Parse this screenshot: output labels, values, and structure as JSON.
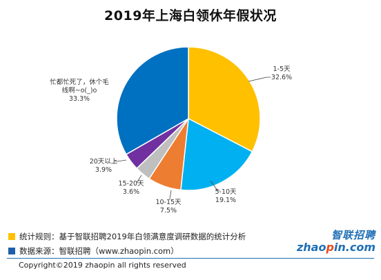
{
  "title": "2019年上海白领休年假状况",
  "chart_data": {
    "type": "pie",
    "title": "2019年上海白领休年假状况",
    "slices": [
      {
        "label": "1-5天",
        "value": 32.6,
        "value_text": "32.6%",
        "color": "#FFC000"
      },
      {
        "label": "5-10天",
        "value": 19.1,
        "value_text": "19.1%",
        "color": "#00B0F0"
      },
      {
        "label": "10-15天",
        "value": 7.5,
        "value_text": "7.5%",
        "color": "#ED7D31"
      },
      {
        "label": "15-20天",
        "value": 3.6,
        "value_text": "3.6%",
        "color": "#BFBFBF"
      },
      {
        "label": "20天以上",
        "value": 3.9,
        "value_text": "3.9%",
        "color": "#7030A0"
      },
      {
        "label_lines": [
          "忙都忙死了，休个毛",
          "线啊~o(_)o"
        ],
        "value": 33.3,
        "value_text": "33.3%",
        "color": "#0070C0"
      }
    ]
  },
  "notes": {
    "rule": "统计规则：基于智联招聘2019年白领满意度调研数据的统计分析",
    "rule_color": "#FFC000",
    "source": "数据来源：智联招聘（www.zhaopin.com）",
    "source_color": "#1F5FA8"
  },
  "logo": {
    "cn": "智联招聘",
    "en_pre": "zhao",
    "en_o": "p",
    "en_post": "in.com"
  },
  "copyright": "Copyright©2019 zhaopin all rights reserved"
}
